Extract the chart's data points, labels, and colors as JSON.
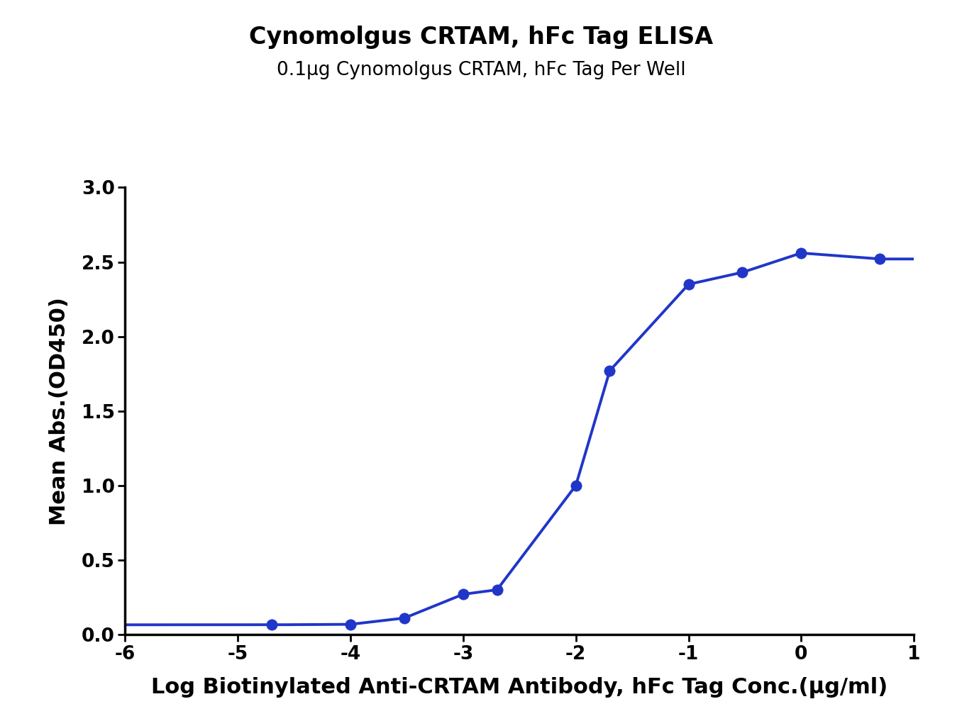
{
  "title": "Cynomolgus CRTAM, hFc Tag ELISA",
  "subtitle": "0.1μg Cynomolgus CRTAM, hFc Tag Per Well",
  "xlabel": "Log Biotinylated Anti-CRTAM Antibody, hFc Tag Conc.(μg/ml)",
  "ylabel": "Mean Abs.(OD450)",
  "data_x": [
    -4.699,
    -4.0,
    -3.522,
    -3.0,
    -2.699,
    -2.0,
    -1.699,
    -1.0,
    -0.523,
    0.0,
    0.699
  ],
  "data_y": [
    0.065,
    0.068,
    0.11,
    0.27,
    0.3,
    1.0,
    1.77,
    2.35,
    2.43,
    2.56,
    2.52
  ],
  "xlim": [
    -6,
    1
  ],
  "ylim": [
    0.0,
    3.0
  ],
  "xticks": [
    -6,
    -5,
    -4,
    -3,
    -2,
    -1,
    0,
    1
  ],
  "yticks": [
    0.0,
    0.5,
    1.0,
    1.5,
    2.0,
    2.5,
    3.0
  ],
  "line_color": "#2036c8",
  "marker_color": "#2036c8",
  "title_fontsize": 24,
  "subtitle_fontsize": 19,
  "axis_label_fontsize": 22,
  "tick_fontsize": 19,
  "background_color": "#ffffff",
  "line_width": 2.8,
  "marker_size": 11
}
